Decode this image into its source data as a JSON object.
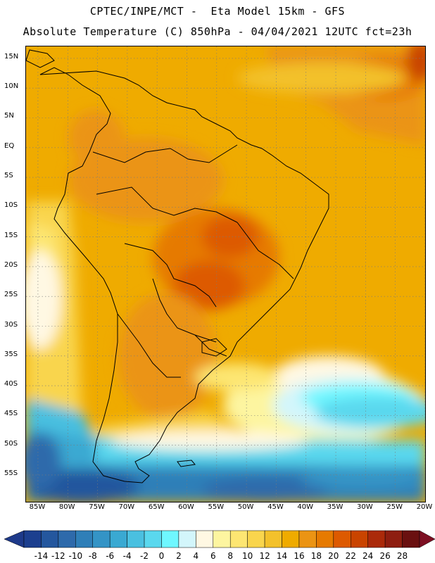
{
  "header": {
    "title_line1": "CPTEC/INPE/MCT -  Eta Model 15km - GFS",
    "title_line2": "Absolute Temperature (C) 850hPa - 04/04/2021 12UTC fct=23h"
  },
  "map": {
    "lat_labels": [
      "15N",
      "10N",
      "5N",
      "EQ",
      "5S",
      "10S",
      "15S",
      "20S",
      "25S",
      "30S",
      "35S",
      "40S",
      "45S",
      "50S",
      "55S"
    ],
    "lon_labels": [
      "85W",
      "80W",
      "75W",
      "70W",
      "65W",
      "60W",
      "55W",
      "50W",
      "45W",
      "40W",
      "35W",
      "30W",
      "25W",
      "20W"
    ],
    "lat_values": [
      15,
      10,
      5,
      0,
      -5,
      -10,
      -15,
      -20,
      -25,
      -30,
      -35,
      -40,
      -45,
      -50,
      -55
    ],
    "lon_values": [
      -85,
      -80,
      -75,
      -70,
      -65,
      -60,
      -55,
      -50,
      -45,
      -40,
      -35,
      -30,
      -25,
      -20
    ]
  },
  "legend": {
    "labels": [
      "-14",
      "-12",
      "-10",
      "-8",
      "-6",
      "-4",
      "-2",
      "0",
      "2",
      "4",
      "6",
      "8",
      "10",
      "12",
      "14",
      "16",
      "18",
      "20",
      "22",
      "24",
      "26",
      "28"
    ],
    "colors": [
      "#1c3f8f",
      "#24579e",
      "#2e6aab",
      "#2f7fb8",
      "#3494c6",
      "#3aa9d2",
      "#4ac0e0",
      "#5ad8ee",
      "#6ff7ff",
      "#d3f6fb",
      "#fff8e3",
      "#fdf5a0",
      "#fde672",
      "#f9d54d",
      "#f3c12b",
      "#efab00",
      "#eb9413",
      "#e67a00",
      "#dd5a00",
      "#c94400",
      "#ab2a0a",
      "#8e1e10",
      "#6a1010"
    ],
    "under_color": "#1e3a8a",
    "over_color": "#7d0f22"
  }
}
